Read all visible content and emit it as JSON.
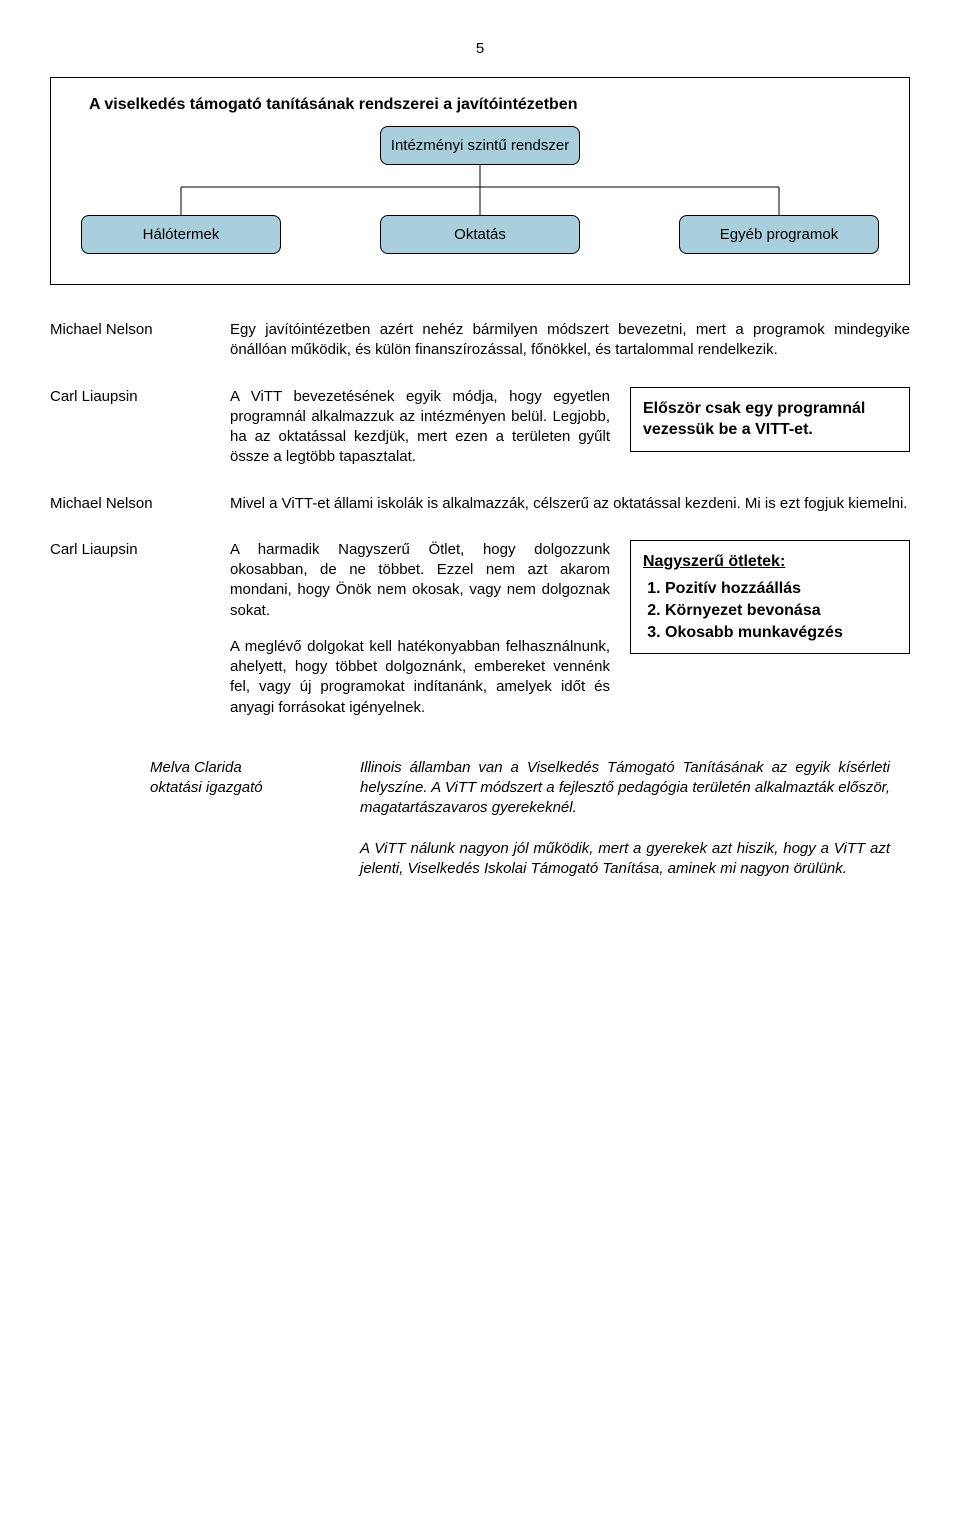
{
  "page_number": "5",
  "diagram": {
    "title": "A viselkedés támogató tanításának rendszerei a javítóintézetben",
    "root": "Intézményi szintű rendszer",
    "children": [
      "Hálótermek",
      "Oktatás",
      "Egyéb programok"
    ],
    "node_fill": "#a9cedc",
    "node_stroke": "#000000",
    "line_stroke": "#000000"
  },
  "rows": [
    {
      "speaker": "Michael Nelson",
      "full": "Egy javítóintézetben azért nehéz bármilyen módszert bevezetni, mert a programok mindegyike önállóan működik, és külön finanszírozással, főnökkel, és tartalommal rendelkezik."
    },
    {
      "speaker": "Carl Liaupsin",
      "left": "A ViTT bevezetésének egyik módja, hogy egyetlen programnál alkalmazzuk az intézményen belül. Legjobb, ha az oktatással kezdjük, mert ezen a területen gyűlt össze a legtöbb tapasztalat.",
      "callout": "Először csak egy programnál vezessük be a VITT-et."
    },
    {
      "speaker": "Michael Nelson",
      "full": "Mivel a ViTT-et állami iskolák is alkalmazzák, célszerű az oktatással kezdeni. Mi is ezt fogjuk kiemelni."
    },
    {
      "speaker": "Carl Liaupsin",
      "left1": "A harmadik Nagyszerű Ötlet, hogy dolgozzunk okosabban, de ne többet. Ezzel nem azt akarom mondani, hogy Önök nem okosak, vagy nem dolgoznak sokat.",
      "left2": "A meglévő dolgokat kell hatékonyabban felhasználnunk, ahelyett, hogy többet dolgoznánk, embereket vennénk fel, vagy új programokat indítanánk, amelyek időt és anyagi forrásokat igényelnek.",
      "callout_title": "Nagyszerű ötletek:",
      "callout_items": [
        "Pozitív hozzáállás",
        "Környezet bevonása",
        "Okosabb munkavégzés"
      ]
    }
  ],
  "indented": {
    "speaker_name": "Melva Clarida",
    "speaker_role": "oktatási igazgató",
    "p1": "Illinois államban van a Viselkedés Támogató Tanításának az egyik kísérleti helyszíne. A ViTT módszert a fejlesztő pedagógia területén alkalmazták először, magatartászavaros gyerekeknél.",
    "p2": "A ViTT nálunk nagyon jól működik, mert a gyerekek azt hiszik, hogy a ViTT azt jelenti, Viselkedés Iskolai Támogató Tanítása, aminek mi nagyon örülünk."
  },
  "colors": {
    "background": "#ffffff",
    "text": "#000000"
  }
}
